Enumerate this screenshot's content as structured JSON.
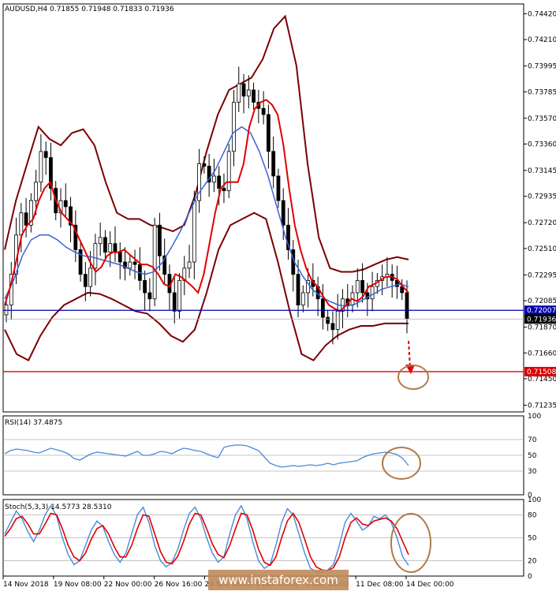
{
  "header": "AUDUSD,H4  0.71855 0.71948 0.71833 0.71936",
  "watermark": "www.instaforex.com",
  "colors": {
    "candle": "#000000",
    "bb": "#7a0000",
    "ma_fast": "#e00000",
    "ma_slow": "#3a63d6",
    "support_line": "#0000b0",
    "target_line": "#e00000",
    "circle": "#b07a4a",
    "rsi_line": "#4a8ad6",
    "stoch_k": "#4a8ad6",
    "stoch_d": "#e00000"
  },
  "chart_data": [
    {
      "type": "candlestick",
      "title": "AUDUSD,H4",
      "ohlc_last": {
        "open": 0.71855,
        "high": 0.71948,
        "low": 0.71833,
        "close": 0.71936
      },
      "ylim": [
        0.7118,
        0.745
      ],
      "y_ticks": [
        "0.74420",
        "0.74210",
        "0.73995",
        "0.73785",
        "0.73570",
        "0.73360",
        "0.73145",
        "0.72935",
        "0.72720",
        "0.72510",
        "0.72295",
        "0.72085",
        "0.71870",
        "0.71660",
        "0.71450",
        "0.71235"
      ],
      "x_ticks": [
        "14 Nov 2018",
        "19 Nov 08:00",
        "22 Nov 00:00",
        "26 Nov 16:00",
        "29 Nov 08:00",
        "4 Dec 00:00",
        "6 Dec 16:00",
        "11 Dec 08:00",
        "14 Dec 00:00"
      ],
      "price_labels": [
        {
          "text": "0.72007",
          "value": 0.72007,
          "bg": "#0000b0"
        },
        {
          "text": "0.71936",
          "value": 0.71936,
          "bg": "#000000"
        },
        {
          "text": "0.71508",
          "value": 0.71508,
          "bg": "#e00000"
        }
      ],
      "hlines": [
        {
          "name": "support",
          "value": 0.72007,
          "color": "#0000b0"
        },
        {
          "name": "target",
          "value": 0.71508,
          "color": "#e00000"
        }
      ],
      "close_series": [
        0.7205,
        0.723,
        0.7262,
        0.728,
        0.727,
        0.729,
        0.7305,
        0.733,
        0.7325,
        0.73,
        0.728,
        0.729,
        0.7285,
        0.727,
        0.725,
        0.723,
        0.722,
        0.7235,
        0.7255,
        0.726,
        0.7248,
        0.7255,
        0.7248,
        0.724,
        0.7235,
        0.724,
        0.7238,
        0.7225,
        0.7215,
        0.721,
        0.727,
        0.7245,
        0.723,
        0.7215,
        0.72,
        0.7225,
        0.7235,
        0.724,
        0.729,
        0.732,
        0.7318,
        0.7305,
        0.731,
        0.73,
        0.7298,
        0.733,
        0.737,
        0.7385,
        0.7375,
        0.738,
        0.737,
        0.7365,
        0.736,
        0.733,
        0.731,
        0.729,
        0.727,
        0.725,
        0.723,
        0.7205,
        0.7215,
        0.7225,
        0.722,
        0.721,
        0.7195,
        0.719,
        0.7185,
        0.72,
        0.721,
        0.7205,
        0.7215,
        0.7225,
        0.7215,
        0.721,
        0.722,
        0.7225,
        0.7228,
        0.723,
        0.7225,
        0.722,
        0.7215,
        0.7194
      ],
      "ma_fast": [
        0.7205,
        0.722,
        0.724,
        0.7262,
        0.727,
        0.7275,
        0.729,
        0.73,
        0.7305,
        0.729,
        0.728,
        0.7275,
        0.727,
        0.726,
        0.725,
        0.724,
        0.7232,
        0.7236,
        0.7245,
        0.7248,
        0.7248,
        0.725,
        0.7246,
        0.7242,
        0.7238,
        0.7238,
        0.7236,
        0.723,
        0.7222,
        0.722,
        0.723,
        0.7228,
        0.7224,
        0.722,
        0.7215,
        0.723,
        0.7255,
        0.728,
        0.73,
        0.7305,
        0.7305,
        0.7305,
        0.732,
        0.735,
        0.7365,
        0.737,
        0.7372,
        0.7368,
        0.736,
        0.7335,
        0.73,
        0.727,
        0.725,
        0.7235,
        0.7225,
        0.722,
        0.7212,
        0.7205,
        0.7202,
        0.72,
        0.7205,
        0.721,
        0.7208,
        0.7212,
        0.722,
        0.7222,
        0.7225,
        0.7228,
        0.7228,
        0.7226,
        0.722,
        0.7215
      ],
      "ma_slow": [
        0.721,
        0.7225,
        0.7245,
        0.7258,
        0.7262,
        0.7262,
        0.7258,
        0.7252,
        0.7248,
        0.7245,
        0.7244,
        0.7242,
        0.724,
        0.7238,
        0.7235,
        0.7232,
        0.723,
        0.7232,
        0.724,
        0.7252,
        0.7265,
        0.728,
        0.7295,
        0.7305,
        0.7315,
        0.733,
        0.7345,
        0.735,
        0.7345,
        0.733,
        0.731,
        0.7285,
        0.726,
        0.724,
        0.7228,
        0.7218,
        0.7212,
        0.7208,
        0.7205,
        0.7204,
        0.7206,
        0.721,
        0.7214,
        0.7218,
        0.722,
        0.7222,
        0.722
      ],
      "bb_upper": [
        0.725,
        0.729,
        0.732,
        0.735,
        0.734,
        0.7335,
        0.7345,
        0.7348,
        0.7335,
        0.7305,
        0.728,
        0.7275,
        0.7275,
        0.727,
        0.7268,
        0.7265,
        0.727,
        0.7295,
        0.733,
        0.736,
        0.738,
        0.7385,
        0.739,
        0.7405,
        0.743,
        0.744,
        0.74,
        0.732,
        0.726,
        0.7235,
        0.7232,
        0.7232,
        0.7234,
        0.7238,
        0.7242,
        0.7244,
        0.7242
      ],
      "bb_lower": [
        0.7185,
        0.7165,
        0.716,
        0.718,
        0.7195,
        0.7205,
        0.721,
        0.7215,
        0.7214,
        0.721,
        0.7205,
        0.72,
        0.7198,
        0.719,
        0.718,
        0.7175,
        0.7185,
        0.7215,
        0.725,
        0.727,
        0.7275,
        0.728,
        0.7275,
        0.724,
        0.72,
        0.7165,
        0.716,
        0.7172,
        0.718,
        0.7185,
        0.7188,
        0.7188,
        0.719,
        0.719,
        0.719
      ]
    },
    {
      "type": "line",
      "title": "RSI(14) 37.4875",
      "ylim": [
        0,
        100
      ],
      "y_ticks": [
        "100",
        "70",
        "50",
        "30",
        "0"
      ],
      "levels": [
        70,
        50,
        30
      ],
      "values": [
        52,
        56,
        58,
        57,
        56,
        54,
        53,
        56,
        59,
        57,
        55,
        52,
        46,
        44,
        48,
        52,
        54,
        53,
        52,
        51,
        50,
        49,
        52,
        55,
        50,
        50,
        52,
        55,
        54,
        52,
        56,
        59,
        58,
        56,
        55,
        52,
        49,
        47,
        60,
        62,
        63,
        63,
        62,
        59,
        56,
        48,
        40,
        37,
        35,
        36,
        37,
        36,
        37,
        38,
        37,
        38,
        40,
        38,
        40,
        41,
        42,
        43,
        47,
        50,
        52,
        53,
        54,
        53,
        51,
        46,
        37
      ]
    },
    {
      "type": "line",
      "title": "Stoch(5,3,3) 14.5773 28.5310",
      "ylim": [
        0,
        100
      ],
      "y_ticks": [
        "100",
        "80",
        "50",
        "20",
        "0"
      ],
      "levels": [
        80,
        50,
        20
      ],
      "series": [
        {
          "name": "%K",
          "values": [
            55,
            70,
            85,
            75,
            58,
            45,
            60,
            80,
            92,
            78,
            50,
            28,
            15,
            20,
            40,
            60,
            72,
            65,
            45,
            28,
            18,
            30,
            55,
            80,
            90,
            70,
            40,
            20,
            12,
            18,
            35,
            60,
            82,
            90,
            75,
            50,
            30,
            18,
            25,
            55,
            80,
            92,
            75,
            45,
            20,
            10,
            15,
            40,
            70,
            88,
            80,
            55,
            30,
            10,
            6,
            5,
            8,
            15,
            40,
            70,
            82,
            72,
            60,
            65,
            78,
            75,
            80,
            70,
            50,
            25,
            14
          ]
        },
        {
          "name": "%D",
          "values": [
            52,
            62,
            75,
            78,
            68,
            55,
            55,
            68,
            82,
            80,
            62,
            40,
            25,
            20,
            30,
            48,
            62,
            66,
            55,
            38,
            25,
            25,
            40,
            62,
            80,
            78,
            55,
            32,
            18,
            16,
            26,
            45,
            68,
            82,
            80,
            62,
            42,
            28,
            24,
            40,
            62,
            82,
            80,
            60,
            35,
            18,
            14,
            25,
            50,
            72,
            82,
            70,
            48,
            25,
            12,
            8,
            7,
            11,
            25,
            50,
            70,
            76,
            68,
            66,
            72,
            74,
            76,
            72,
            62,
            45,
            28
          ]
        }
      ]
    }
  ]
}
